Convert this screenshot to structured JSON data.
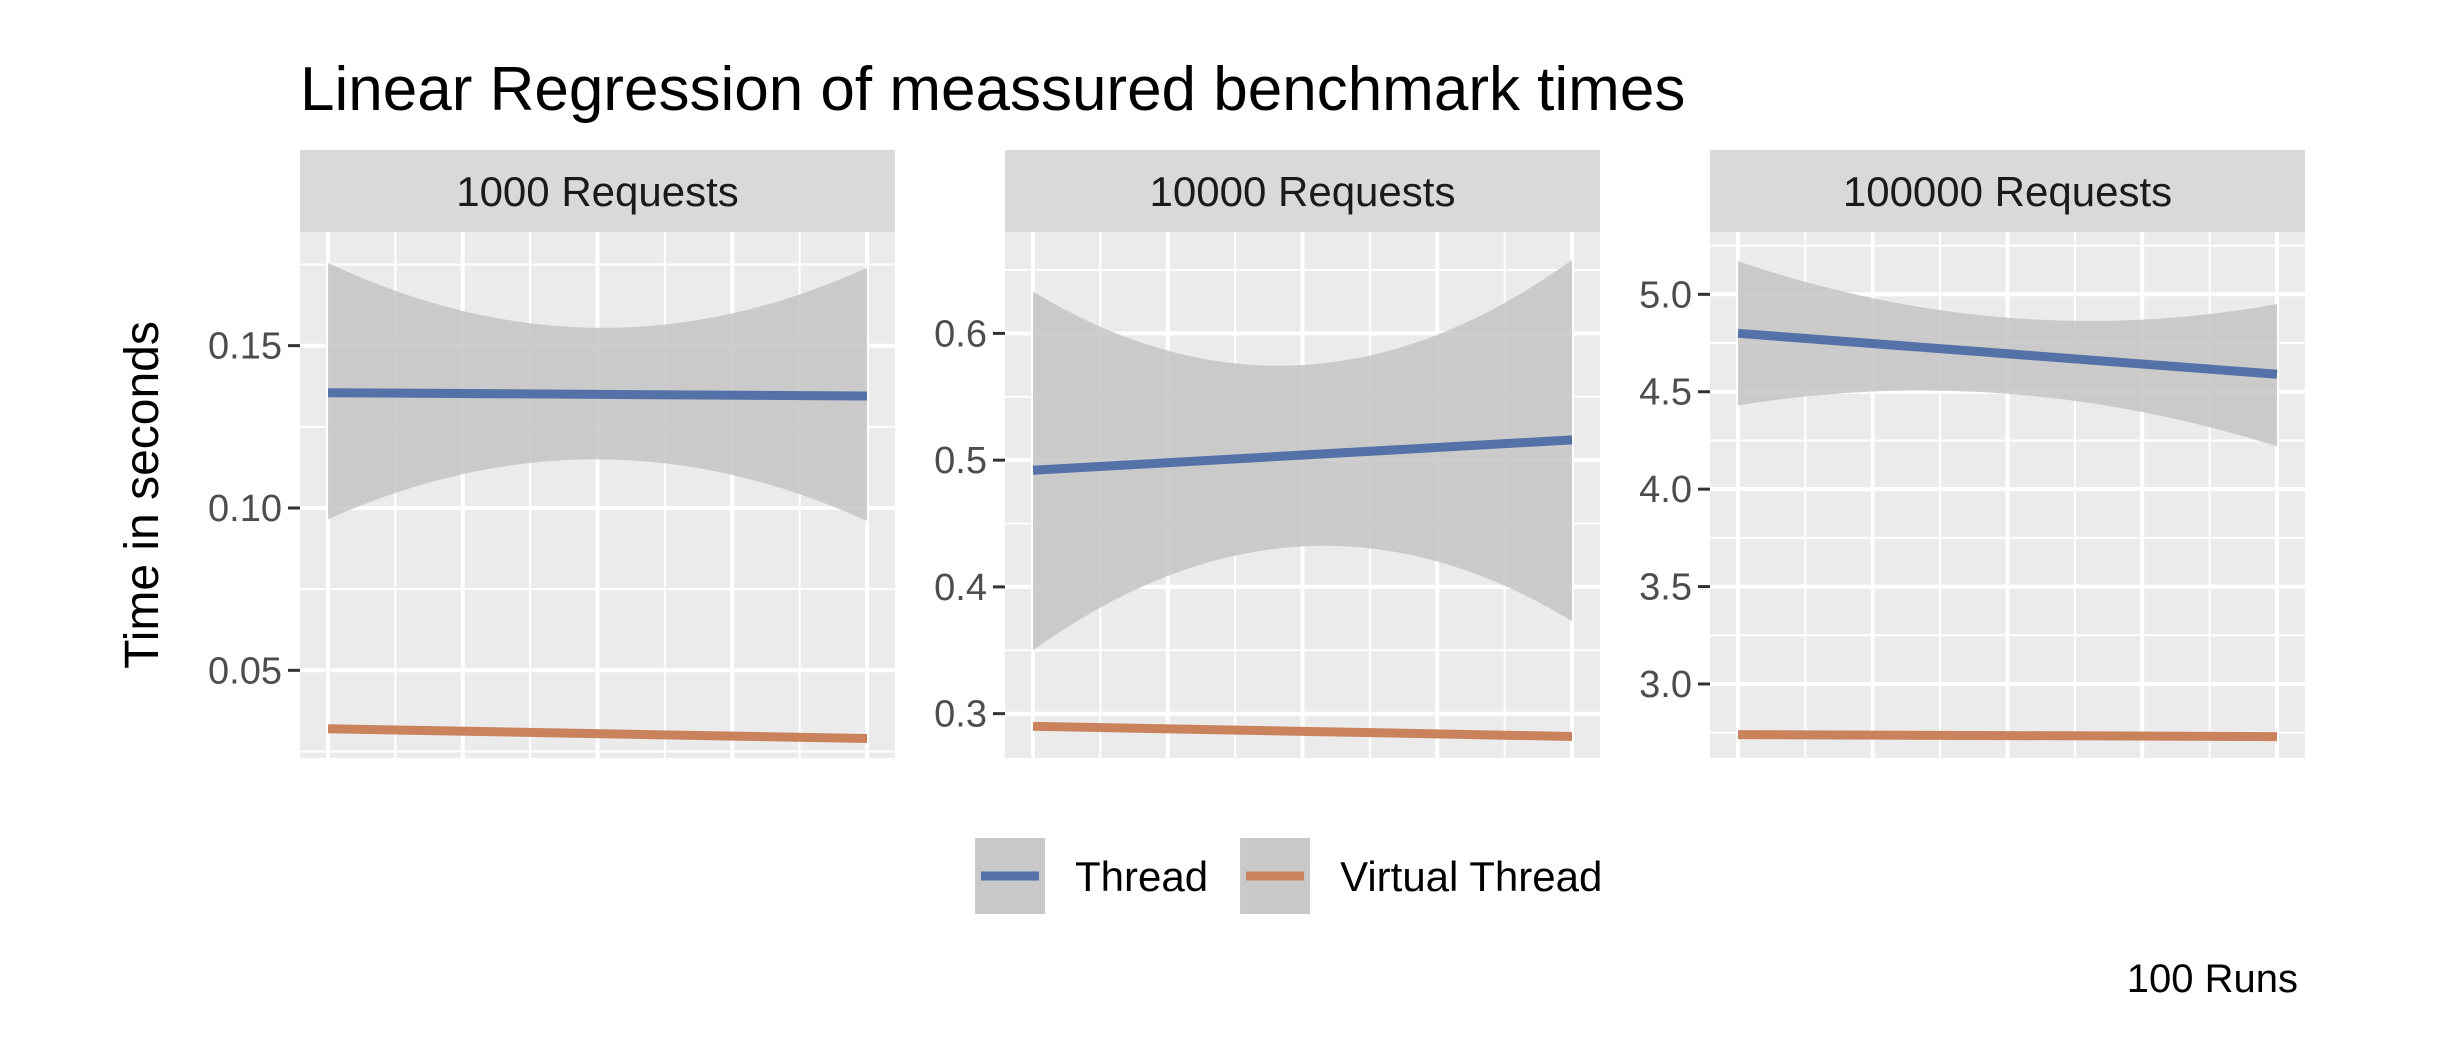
{
  "chart_data": {
    "type": "line",
    "title": "Linear Regression of meassured benchmark times",
    "ylabel": "Time in seconds",
    "xlabel": "",
    "caption": "100 Runs",
    "legend_position": "bottom",
    "grid": true,
    "colors": {
      "Thread": "#5471a8",
      "Virtual Thread": "#c9825b",
      "ribbon": "#c4c4c4",
      "panel_bg": "#ebebeb",
      "strip_bg": "#d9d9d9",
      "grid": "#ffffff",
      "legend_key_bg": "#c9c9c9"
    },
    "legend": [
      {
        "name": "Thread",
        "color": "#5471a8"
      },
      {
        "name": "Virtual Thread",
        "color": "#c9825b"
      }
    ],
    "x": [
      1,
      100
    ],
    "facets": [
      {
        "label": "1000 Requests",
        "ylim": [
          0.023,
          0.185
        ],
        "yticks": [
          0.05,
          0.1,
          0.15
        ],
        "ytick_labels": [
          "0.05",
          "0.10",
          "0.15"
        ],
        "series": [
          {
            "name": "Thread",
            "values": [
              0.1355,
              0.1345
            ],
            "ci_lower": [
              0.0965,
              0.115,
              0.096
            ],
            "ci_upper": [
              0.1755,
              0.1555,
              0.174
            ]
          },
          {
            "name": "Virtual Thread",
            "values": [
              0.032,
              0.029
            ]
          }
        ]
      },
      {
        "label": "10000 Requests",
        "ylim": [
          0.265,
          0.68
        ],
        "yticks": [
          0.3,
          0.4,
          0.5,
          0.6
        ],
        "ytick_labels": [
          "0.3",
          "0.4",
          "0.5",
          "0.6"
        ],
        "series": [
          {
            "name": "Thread",
            "values": [
              0.492,
              0.516
            ],
            "ci_lower": [
              0.35,
              0.432,
              0.373
            ],
            "ci_upper": [
              0.633,
              0.575,
              0.658
            ]
          },
          {
            "name": "Virtual Thread",
            "values": [
              0.29,
              0.282
            ]
          }
        ]
      },
      {
        "label": "100000 Requests",
        "ylim": [
          2.62,
          5.32
        ],
        "yticks": [
          3.0,
          3.5,
          4.0,
          4.5,
          5.0
        ],
        "ytick_labels": [
          "3.0",
          "3.5",
          "4.0",
          "4.5",
          "5.0"
        ],
        "series": [
          {
            "name": "Thread",
            "values": [
              4.8,
              4.59
            ],
            "ci_lower": [
              4.43,
              4.49,
              4.22
            ],
            "ci_upper": [
              5.17,
              4.88,
              4.95
            ]
          },
          {
            "name": "Virtual Thread",
            "values": [
              2.74,
              2.73
            ]
          }
        ]
      }
    ]
  }
}
